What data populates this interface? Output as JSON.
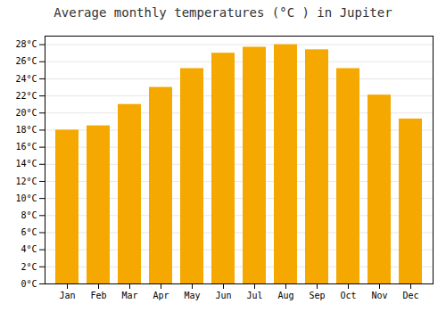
{
  "chart_data": {
    "type": "bar",
    "title": "Average monthly temperatures (°C ) in Jupiter",
    "categories": [
      "Jan",
      "Feb",
      "Mar",
      "Apr",
      "May",
      "Jun",
      "Jul",
      "Aug",
      "Sep",
      "Oct",
      "Nov",
      "Dec"
    ],
    "values": [
      18.0,
      18.5,
      21.0,
      23.0,
      25.2,
      27.0,
      27.7,
      28.0,
      27.4,
      25.2,
      22.1,
      19.3
    ],
    "color": "#F5A800",
    "ylim": [
      0,
      29
    ],
    "yticks": [
      {
        "value": 0,
        "label": "0°C"
      },
      {
        "value": 2,
        "label": "2°C"
      },
      {
        "value": 4,
        "label": "4°C"
      },
      {
        "value": 6,
        "label": "6°C"
      },
      {
        "value": 8,
        "label": "8°C"
      },
      {
        "value": 10,
        "label": "10°C"
      },
      {
        "value": 12,
        "label": "12°C"
      },
      {
        "value": 14,
        "label": "14°C"
      },
      {
        "value": 16,
        "label": "16°C"
      },
      {
        "value": 18,
        "label": "18°C"
      },
      {
        "value": 20,
        "label": "20°C"
      },
      {
        "value": 22,
        "label": "22°C"
      },
      {
        "value": 24,
        "label": "24°C"
      },
      {
        "value": 26,
        "label": "26°C"
      },
      {
        "value": 28,
        "label": "28°C"
      }
    ],
    "grid": true
  }
}
